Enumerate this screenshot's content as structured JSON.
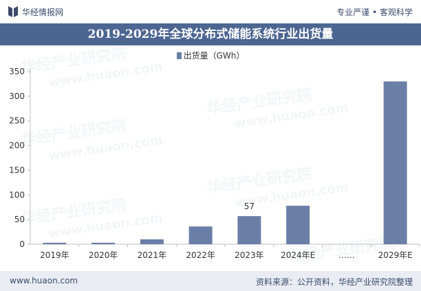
{
  "header": {
    "brand": "华经情报网",
    "tagline": "专业严谨 • 客观科学"
  },
  "chart_data": {
    "type": "bar",
    "title": "2019-2029年全球分布式储能系统行业出货量",
    "legend": "出货量（GWh）",
    "categories": [
      "2019年",
      "2020年",
      "2021年",
      "2022年",
      "2023年",
      "2024年E",
      "……",
      "2029年E"
    ],
    "series": [
      {
        "name": "出货量（GWh）",
        "values": [
          3,
          3,
          10,
          36,
          57,
          78,
          null,
          330
        ]
      }
    ],
    "data_labels": {
      "2023年": "57"
    },
    "yticks": [
      "0",
      "50",
      "100",
      "150",
      "200",
      "250",
      "300",
      "350"
    ],
    "ylim": [
      0,
      350
    ],
    "grid": false,
    "bar_color": "#6b7fa6"
  },
  "footer": {
    "website": "www.huaon.com",
    "source": "资料来源：公开资料，华经产业研究院整理"
  },
  "watermarks": [
    "华经产业研究院",
    "www.huaon.com"
  ]
}
